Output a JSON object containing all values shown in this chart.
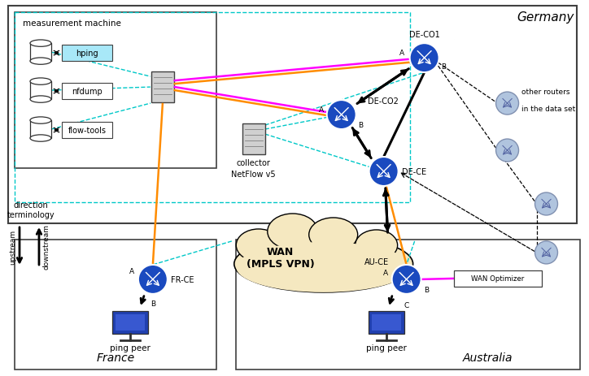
{
  "colors": {
    "router_blue": "#1a4abf",
    "other_router_fill": "#b0c4de",
    "other_router_edge": "#8090b0",
    "box_border": "#404040",
    "cyan_dash": "#00c8c8",
    "magenta": "#ff00ff",
    "orange": "#ff8c00",
    "black": "#000000",
    "wan_fill": "#f5e8c0",
    "hping_fill": "#a8e8f8",
    "white": "#ffffff",
    "server_fill": "#d0d0d0",
    "screen_fill": "#2040b0"
  },
  "text": {
    "germany": "Germany",
    "france": "France",
    "australia": "Australia",
    "measurement_machine": "measurement machine",
    "collector": "collector",
    "netflow": "NetFlow v5",
    "wan": "WAN\n(MPLS VPN)",
    "hping": "hping",
    "nfdump": "nfdump",
    "flow_tools": "flow-tools",
    "wan_optimizer": "WAN Optimizer",
    "ping_peer": "ping peer",
    "direction": "direction\nterminology",
    "upstream": "upstream",
    "downstream": "downstream",
    "de_co1": "DE-CO1",
    "de_co2": "DE-CO2",
    "de_ce": "DE-CE",
    "fr_ce": "FR-CE",
    "au_ce": "AU-CE",
    "other_routers_line1": "other routers",
    "other_routers_line2": "in the data set"
  }
}
